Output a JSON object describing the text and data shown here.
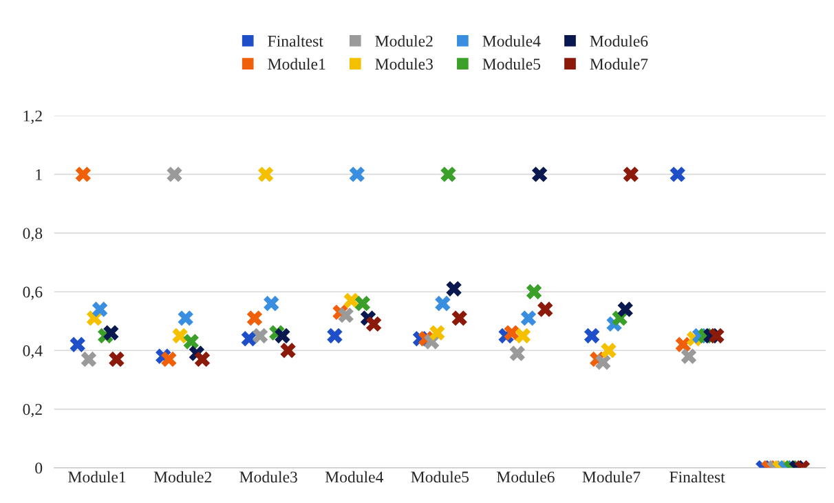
{
  "chart_data": {
    "type": "scatter",
    "categories": [
      "Module1",
      "Module2",
      "Module3",
      "Module4",
      "Module5",
      "Module6",
      "Module7",
      "Finaltest",
      null
    ],
    "series": [
      {
        "name": "Finaltest",
        "color": "#1f4fc8",
        "values": [
          0.42,
          0.38,
          0.44,
          0.45,
          0.44,
          0.45,
          0.45,
          1.0,
          0
        ]
      },
      {
        "name": "Module1",
        "color": "#f0600a",
        "values": [
          1.0,
          0.37,
          0.51,
          0.53,
          0.44,
          0.46,
          0.37,
          0.42,
          0
        ]
      },
      {
        "name": "Module2",
        "color": "#9a9a9a",
        "values": [
          0.37,
          1.0,
          0.45,
          0.52,
          0.43,
          0.39,
          0.36,
          0.38,
          0
        ]
      },
      {
        "name": "Module3",
        "color": "#f5c000",
        "values": [
          0.51,
          0.45,
          1.0,
          0.57,
          0.46,
          0.45,
          0.4,
          0.44,
          0
        ]
      },
      {
        "name": "Module4",
        "color": "#3a8ee0",
        "values": [
          0.54,
          0.51,
          0.56,
          1.0,
          0.56,
          0.51,
          0.49,
          0.45,
          0
        ]
      },
      {
        "name": "Module5",
        "color": "#3aa02a",
        "values": [
          0.45,
          0.43,
          0.46,
          0.56,
          1.0,
          0.6,
          0.51,
          0.45,
          0
        ]
      },
      {
        "name": "Module6",
        "color": "#0a1850",
        "values": [
          0.46,
          0.39,
          0.45,
          0.51,
          0.61,
          1.0,
          0.54,
          0.45,
          0
        ]
      },
      {
        "name": "Module7",
        "color": "#8b1a0a",
        "values": [
          0.37,
          0.37,
          0.4,
          0.49,
          0.51,
          0.54,
          1.0,
          0.45,
          0
        ]
      }
    ],
    "ylim": [
      0,
      1.2
    ],
    "yticks": [
      0,
      {
        "value": 0.2,
        "label": "0,2"
      },
      {
        "value": 0.4,
        "label": "0,4"
      },
      {
        "value": 0.6,
        "label": "0,6"
      },
      {
        "value": 0.8,
        "label": "0,8"
      },
      1,
      {
        "value": 1.2,
        "label": "1,2"
      }
    ],
    "grid": "y",
    "legend": "top",
    "marker": "cross"
  }
}
